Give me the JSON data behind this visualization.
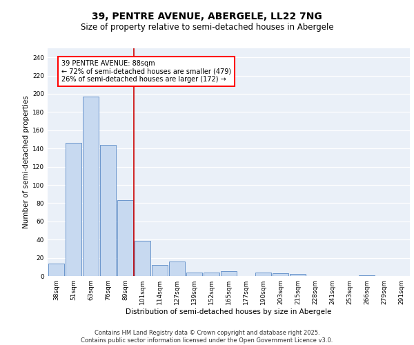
{
  "title_line1": "39, PENTRE AVENUE, ABERGELE, LL22 7NG",
  "title_line2": "Size of property relative to semi-detached houses in Abergele",
  "xlabel": "Distribution of semi-detached houses by size in Abergele",
  "ylabel": "Number of semi-detached properties",
  "categories": [
    "38sqm",
    "51sqm",
    "63sqm",
    "76sqm",
    "89sqm",
    "101sqm",
    "114sqm",
    "127sqm",
    "139sqm",
    "152sqm",
    "165sqm",
    "177sqm",
    "190sqm",
    "203sqm",
    "215sqm",
    "228sqm",
    "241sqm",
    "253sqm",
    "266sqm",
    "279sqm",
    "291sqm"
  ],
  "values": [
    14,
    146,
    197,
    144,
    83,
    39,
    12,
    16,
    4,
    4,
    5,
    0,
    4,
    3,
    2,
    0,
    0,
    0,
    1,
    0,
    0
  ],
  "bar_color": "#c7d9f0",
  "bar_edge_color": "#5a8ac6",
  "vline_x": 4.5,
  "vline_color": "#cc0000",
  "annotation_text": "39 PENTRE AVENUE: 88sqm\n← 72% of semi-detached houses are smaller (479)\n26% of semi-detached houses are larger (172) →",
  "ylim": [
    0,
    250
  ],
  "yticks": [
    0,
    20,
    40,
    60,
    80,
    100,
    120,
    140,
    160,
    180,
    200,
    220,
    240
  ],
  "background_color": "#eaf0f8",
  "grid_color": "#ffffff",
  "footer_text": "Contains HM Land Registry data © Crown copyright and database right 2025.\nContains public sector information licensed under the Open Government Licence v3.0.",
  "title_fontsize": 10,
  "subtitle_fontsize": 8.5,
  "axis_label_fontsize": 7.5,
  "tick_fontsize": 6.5,
  "annotation_fontsize": 7,
  "footer_fontsize": 6
}
